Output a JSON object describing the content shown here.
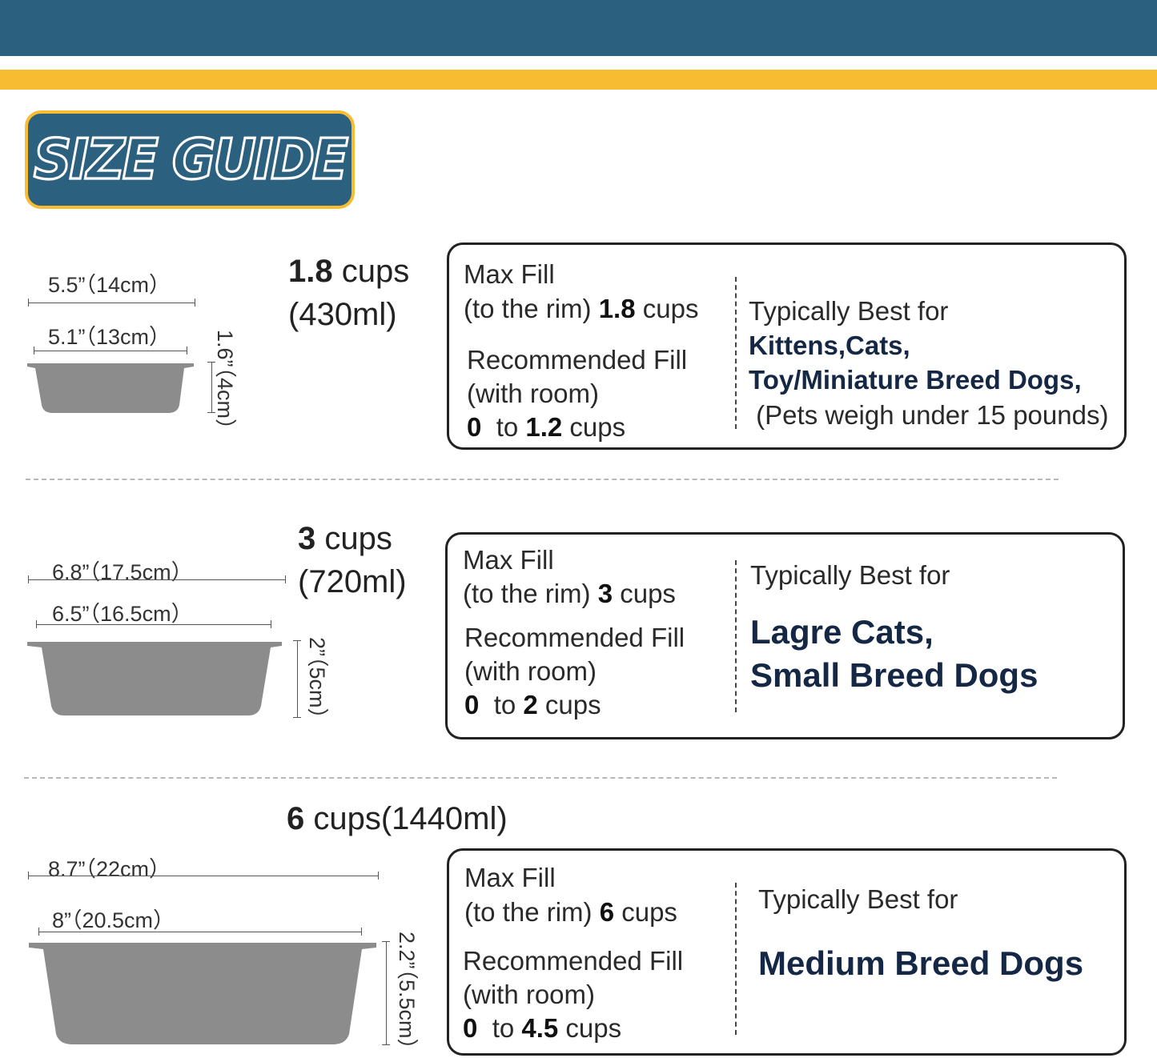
{
  "header": {
    "badge_title": "SIZE GUIDE"
  },
  "colors": {
    "navy": "#2b607f",
    "yellow": "#f7bc32",
    "bowl_gray": "#8c8c8c",
    "dark_text": "#142744"
  },
  "sizes": [
    {
      "top_width": "5.5”（14cm）",
      "bottom_width": "5.1”（13cm）",
      "height": "1.6”（4cm）",
      "capacity_num": "1.8",
      "capacity_unit": " cups",
      "capacity_ml": "(430ml)",
      "max_fill_label": "Max Fill",
      "max_fill_prefix": "(to the rim) ",
      "max_fill_num": "1.8",
      "max_fill_unit": " cups",
      "rec_fill_label": "Recommended Fill",
      "rec_fill_room": "(with room)",
      "rec_from": "0",
      "rec_to_word": "  to ",
      "rec_to_num": "1.2",
      "rec_unit": " cups",
      "best_label": "Typically Best for",
      "best_line1": "Kittens,Cats,",
      "best_line2": "Toy/Miniature Breed Dogs,",
      "best_note": " (Pets weigh under 15 pounds)"
    },
    {
      "top_width": "6.8”（17.5cm）",
      "bottom_width": "6.5”（16.5cm）",
      "height": "2”（5cm）",
      "capacity_num": "3",
      "capacity_unit": " cups",
      "capacity_ml": "(720ml)",
      "max_fill_label": "Max Fill",
      "max_fill_prefix": "(to the rim) ",
      "max_fill_num": "3",
      "max_fill_unit": " cups",
      "rec_fill_label": "Recommended Fill",
      "rec_fill_room": "(with room)",
      "rec_from": "0",
      "rec_to_word": "  to ",
      "rec_to_num": "2",
      "rec_unit": " cups",
      "best_label": "Typically Best for",
      "best_line1": "Lagre Cats,",
      "best_line2": "Small Breed Dogs"
    },
    {
      "top_width": "8.7”（22cm）",
      "bottom_width": "8”（20.5cm）",
      "height": "2.2”（5.5cm）",
      "capacity_num": "6",
      "capacity_unit": " cups(1440ml)",
      "max_fill_label": "Max Fill",
      "max_fill_prefix": "(to the rim) ",
      "max_fill_num": "6",
      "max_fill_unit": " cups",
      "rec_fill_label": "Recommended Fill",
      "rec_fill_room": "(with room)",
      "rec_from": "0",
      "rec_to_word": "  to ",
      "rec_to_num": "4.5",
      "rec_unit": " cups",
      "best_label": "Typically Best for",
      "best_line1": "Medium Breed Dogs"
    }
  ]
}
